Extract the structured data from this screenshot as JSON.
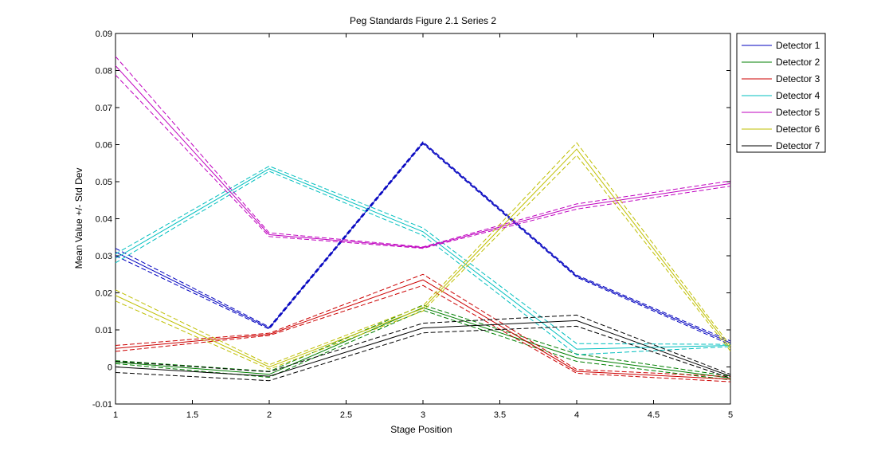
{
  "chart_data": {
    "type": "line",
    "title": "Peg Standards Figure 2.1 Series 2",
    "xlabel": "Stage Position",
    "ylabel": "Mean Value +/- Std Dev",
    "xlim": [
      1,
      5
    ],
    "ylim": [
      -0.01,
      0.09
    ],
    "xticks": [
      1,
      1.5,
      2,
      2.5,
      3,
      3.5,
      4,
      4.5,
      5
    ],
    "xtick_labels": [
      "1",
      "1.5",
      "2",
      "2.5",
      "3",
      "3.5",
      "4",
      "4.5",
      "5"
    ],
    "yticks": [
      -0.01,
      0,
      0.01,
      0.02,
      0.03,
      0.04,
      0.05,
      0.06,
      0.07,
      0.08,
      0.09
    ],
    "ytick_labels": [
      "-0.01",
      "0",
      "0.01",
      "0.02",
      "0.03",
      "0.04",
      "0.05",
      "0.06",
      "0.07",
      "0.08",
      "0.09"
    ],
    "grid": false,
    "legend_position": "top-right",
    "x": [
      1,
      2,
      3,
      4,
      5
    ],
    "series": [
      {
        "name": "Detector 1",
        "color": "#0000bf",
        "values": [
          0.031,
          0.0105,
          0.0605,
          0.0245,
          0.0065
        ],
        "std": [
          0.001,
          0.0003,
          0.0003,
          0.0003,
          0.0005
        ]
      },
      {
        "name": "Detector 2",
        "color": "#007f00",
        "values": [
          0.0013,
          -0.002,
          0.016,
          0.0025,
          -0.003
        ],
        "std": [
          0.0004,
          0.0008,
          0.0007,
          0.001,
          0.0005
        ]
      },
      {
        "name": "Detector 3",
        "color": "#cc0000",
        "values": [
          0.005,
          0.0088,
          0.0235,
          -0.0012,
          -0.0033
        ],
        "std": [
          0.0008,
          0.0003,
          0.0015,
          0.0005,
          0.0007
        ]
      },
      {
        "name": "Detector 4",
        "color": "#00bfbf",
        "values": [
          0.0293,
          0.0535,
          0.0365,
          0.0048,
          0.0058
        ],
        "std": [
          0.0012,
          0.0007,
          0.001,
          0.0015,
          0.0003
        ]
      },
      {
        "name": "Detector 5",
        "color": "#bf00bf",
        "values": [
          0.0813,
          0.0357,
          0.0322,
          0.0433,
          0.0495
        ],
        "std": [
          0.0025,
          0.0005,
          0.0002,
          0.0007,
          0.0007
        ]
      },
      {
        "name": "Detector 6",
        "color": "#bfbf00",
        "values": [
          0.0193,
          0.0,
          0.0158,
          0.0588,
          0.005
        ],
        "std": [
          0.0015,
          0.0006,
          0.0007,
          0.0017,
          0.0007
        ]
      },
      {
        "name": "Detector 7",
        "color": "#000000",
        "values": [
          0.0,
          -0.0025,
          0.0105,
          0.0125,
          -0.0025
        ],
        "std": [
          0.0015,
          0.0012,
          0.0013,
          0.0015,
          0.0005
        ]
      }
    ]
  }
}
